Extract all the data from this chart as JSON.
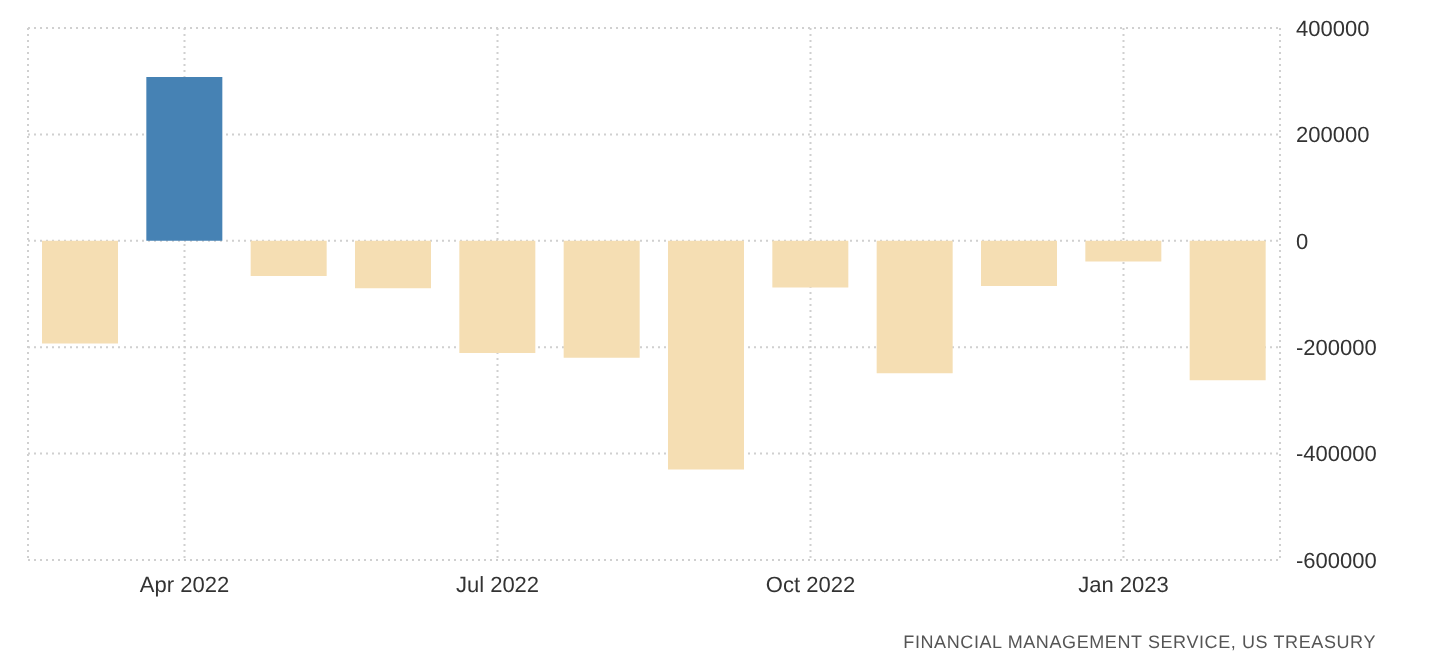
{
  "chart_data": {
    "type": "bar",
    "categories": [
      null,
      "Apr 2022",
      null,
      null,
      "Jul 2022",
      null,
      null,
      "Oct 2022",
      null,
      null,
      "Jan 2023",
      null
    ],
    "values": [
      -193000,
      308000,
      -66000,
      -89000,
      -211000,
      -220000,
      -430000,
      -88000,
      -249000,
      -85000,
      -39000,
      -262000
    ],
    "colors": [
      "#f5deb3",
      "#4682b4",
      "#f5deb3",
      "#f5deb3",
      "#f5deb3",
      "#f5deb3",
      "#f5deb3",
      "#f5deb3",
      "#f5deb3",
      "#f5deb3",
      "#f5deb3",
      "#f5deb3"
    ],
    "ylim": [
      -600000,
      400000
    ],
    "yticks": [
      -600000,
      -400000,
      -200000,
      0,
      200000,
      400000
    ],
    "grid": true,
    "annotations": [
      "FINANCIAL MANAGEMENT SERVICE, US TREASURY"
    ]
  }
}
